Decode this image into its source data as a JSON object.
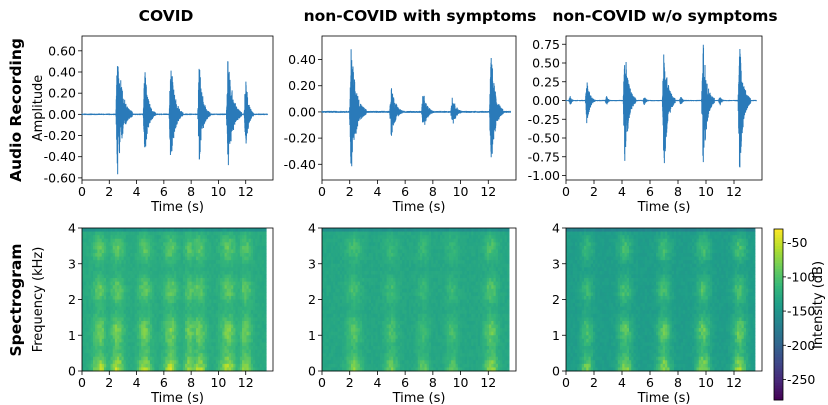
{
  "row_titles": [
    "Audio Recording",
    "Spectrogram"
  ],
  "colors": {
    "waveform": "#2a7ab9"
  },
  "colorbar": {
    "label": "Intensity (dB)",
    "ticks": [
      -50,
      -100,
      -150,
      -200,
      -250
    ],
    "range": [
      -280,
      -30
    ],
    "colormap": "viridis"
  },
  "chart_data": [
    {
      "type": "line",
      "row": 0,
      "col": 0,
      "title": "COVID",
      "xlabel": "Time (s)",
      "ylabel": "Amplitude",
      "xlim": [
        0,
        14
      ],
      "ylim": [
        -0.62,
        0.74
      ],
      "xticks": [
        0,
        2,
        4,
        6,
        8,
        10,
        12
      ],
      "yticks": [
        -0.6,
        -0.4,
        -0.2,
        0.0,
        0.2,
        0.4,
        0.6
      ],
      "ytick_decimals": 2,
      "bursts": [
        {
          "t": 2.6,
          "dur": 1.1,
          "amp": 0.66
        },
        {
          "t": 4.6,
          "dur": 0.8,
          "amp": 0.44
        },
        {
          "t": 6.5,
          "dur": 0.9,
          "amp": 0.55
        },
        {
          "t": 8.6,
          "dur": 0.8,
          "amp": 0.5
        },
        {
          "t": 10.7,
          "dur": 1.0,
          "amp": 0.6
        },
        {
          "t": 12.0,
          "dur": 0.6,
          "amp": 0.4
        }
      ],
      "envelope_min": -0.6,
      "envelope_max": 0.66
    },
    {
      "type": "line",
      "row": 0,
      "col": 1,
      "title": "non-COVID with symptoms",
      "xlabel": "Time (s)",
      "ylabel": "",
      "xlim": [
        0,
        14
      ],
      "ylim": [
        -0.52,
        0.58
      ],
      "xticks": [
        0,
        2,
        4,
        6,
        8,
        10,
        12
      ],
      "yticks": [
        -0.4,
        -0.2,
        0.0,
        0.2,
        0.4
      ],
      "ytick_decimals": 2,
      "bursts": [
        {
          "t": 2.1,
          "dur": 1.1,
          "amp": 0.52
        },
        {
          "t": 5.0,
          "dur": 0.9,
          "amp": 0.22
        },
        {
          "t": 7.3,
          "dur": 0.8,
          "amp": 0.18
        },
        {
          "t": 9.4,
          "dur": 0.8,
          "amp": 0.14
        },
        {
          "t": 12.2,
          "dur": 0.9,
          "amp": 0.48
        }
      ],
      "envelope_min": -0.48,
      "envelope_max": 0.52
    },
    {
      "type": "line",
      "row": 0,
      "col": 2,
      "title": "non-COVID w/o symptoms",
      "xlabel": "Time (s)",
      "ylabel": "",
      "xlim": [
        0,
        14
      ],
      "ylim": [
        -1.06,
        0.86
      ],
      "xticks": [
        0,
        2,
        4,
        6,
        8,
        10,
        12
      ],
      "yticks": [
        -1.0,
        -0.75,
        -0.5,
        -0.25,
        0.0,
        0.25,
        0.5,
        0.75
      ],
      "ytick_decimals": 2,
      "bursts": [
        {
          "t": 0.3,
          "dur": 0.4,
          "amp": 0.06
        },
        {
          "t": 1.5,
          "dur": 0.6,
          "amp": 0.3
        },
        {
          "t": 2.9,
          "dur": 0.4,
          "amp": 0.06
        },
        {
          "t": 4.2,
          "dur": 0.8,
          "amp": 0.75
        },
        {
          "t": 5.6,
          "dur": 0.4,
          "amp": 0.06
        },
        {
          "t": 7.0,
          "dur": 0.8,
          "amp": 0.78
        },
        {
          "t": 8.2,
          "dur": 0.4,
          "amp": 0.06
        },
        {
          "t": 9.8,
          "dur": 0.8,
          "amp": 0.8
        },
        {
          "t": 11.0,
          "dur": 0.4,
          "amp": 0.06
        },
        {
          "t": 12.4,
          "dur": 0.8,
          "amp": 0.78
        }
      ],
      "envelope_min": -1.0,
      "envelope_max": 0.8
    },
    {
      "type": "heatmap",
      "row": 1,
      "col": 0,
      "xlabel": "Time (s)",
      "ylabel": "Frequency (kHz)",
      "xlim": [
        0,
        14
      ],
      "ylim": [
        0,
        4
      ],
      "xticks": [
        0,
        2,
        4,
        6,
        8,
        10,
        12
      ],
      "yticks": [
        0,
        1,
        2,
        3,
        4
      ],
      "data_end_s": 13.5,
      "base_intensity_db": -128,
      "events": [
        {
          "t": 1.3,
          "width": 0.9,
          "peak_db": -55
        },
        {
          "t": 2.6,
          "width": 0.9,
          "peak_db": -55
        },
        {
          "t": 4.6,
          "width": 0.9,
          "peak_db": -60
        },
        {
          "t": 6.5,
          "width": 0.9,
          "peak_db": -55
        },
        {
          "t": 7.9,
          "width": 0.7,
          "peak_db": -60
        },
        {
          "t": 8.6,
          "width": 0.9,
          "peak_db": -58
        },
        {
          "t": 10.7,
          "width": 1.0,
          "peak_db": -55
        },
        {
          "t": 12.0,
          "width": 0.8,
          "peak_db": -62
        }
      ]
    },
    {
      "type": "heatmap",
      "row": 1,
      "col": 1,
      "xlabel": "Time (s)",
      "ylabel": "",
      "xlim": [
        0,
        14
      ],
      "ylim": [
        0,
        4
      ],
      "xticks": [
        0,
        2,
        4,
        6,
        8,
        10,
        12
      ],
      "yticks": [
        0,
        1,
        2,
        3,
        4
      ],
      "data_end_s": 13.5,
      "base_intensity_db": -132,
      "events": [
        {
          "t": 2.3,
          "width": 1.0,
          "peak_db": -75
        },
        {
          "t": 5.0,
          "width": 0.9,
          "peak_db": -85
        },
        {
          "t": 7.3,
          "width": 0.8,
          "peak_db": -90
        },
        {
          "t": 9.4,
          "width": 0.8,
          "peak_db": -90
        },
        {
          "t": 12.2,
          "width": 0.9,
          "peak_db": -65
        }
      ]
    },
    {
      "type": "heatmap",
      "row": 1,
      "col": 2,
      "xlabel": "Time (s)",
      "ylabel": "",
      "xlim": [
        0,
        14
      ],
      "ylim": [
        0,
        4
      ],
      "xticks": [
        0,
        2,
        4,
        6,
        8,
        10,
        12
      ],
      "yticks": [
        0,
        1,
        2,
        3,
        4
      ],
      "data_end_s": 13.5,
      "base_intensity_db": -142,
      "events": [
        {
          "t": 1.5,
          "width": 0.8,
          "peak_db": -80
        },
        {
          "t": 4.2,
          "width": 0.9,
          "peak_db": -65
        },
        {
          "t": 7.0,
          "width": 0.9,
          "peak_db": -65
        },
        {
          "t": 9.8,
          "width": 0.9,
          "peak_db": -62
        },
        {
          "t": 12.4,
          "width": 0.9,
          "peak_db": -62
        }
      ]
    }
  ]
}
